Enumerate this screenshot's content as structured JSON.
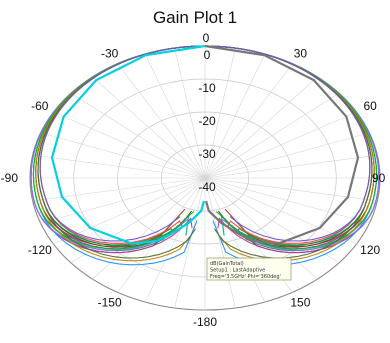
{
  "page": {
    "title": "Gain Plot 1"
  },
  "chart_data": {
    "type": "polar-line",
    "title": "Gain Plot 1",
    "angle_ticks": [
      0,
      30,
      60,
      90,
      120,
      150,
      -180,
      -150,
      -120,
      -90,
      -60,
      -30
    ],
    "angle_tick_labels": [
      "0",
      "30",
      "60",
      "90",
      "120",
      "150",
      "-180",
      "-150",
      "-120",
      "-90",
      "-60",
      "-30"
    ],
    "radial_ticks": [
      0,
      -10,
      -20,
      -30,
      -40
    ],
    "radial_tick_labels": [
      "0",
      "-10",
      "-20",
      "-30",
      "-40"
    ],
    "radial_range": [
      -40,
      0
    ],
    "theta_zero": "top",
    "theta_direction": "clockwise",
    "grid": true,
    "legend": {
      "placement": "bottom-center",
      "lines": [
        "dB(GainTotal)",
        "Setup1 : LastAdaptive",
        "Freq='3.5GHz' Phi='360deg'"
      ]
    },
    "series_colors": [
      "#1f3fbf",
      "#2e8b57",
      "#8a2be2",
      "#444444",
      "#00a0a0",
      "#c23b8f",
      "#1e90ff",
      "#8b4513",
      "#228b22",
      "#ff4040",
      "#7a7aff",
      "#00c000",
      "#b8860b",
      "#556b2f",
      "#6a5acd"
    ],
    "annotated_series": [
      {
        "color": "#777777",
        "theta": [
          0,
          20,
          40,
          60,
          80,
          100,
          120,
          140,
          150,
          155,
          165,
          175,
          178
        ],
        "r": [
          0,
          -0.4,
          -1.3,
          -2.7,
          -4.5,
          -6.8,
          -9.7,
          -14,
          -18,
          -21,
          -26,
          -30,
          -33
        ]
      },
      {
        "color": "#00d0e0",
        "theta": [
          0,
          -20,
          -40,
          -60,
          -80,
          -100,
          -120,
          -140,
          -150,
          -155,
          -165,
          -175,
          -178
        ],
        "r": [
          0,
          -0.4,
          -1.3,
          -2.7,
          -4.5,
          -6.8,
          -9.7,
          -14,
          -18,
          -21,
          -26,
          -30,
          -33
        ]
      }
    ]
  }
}
